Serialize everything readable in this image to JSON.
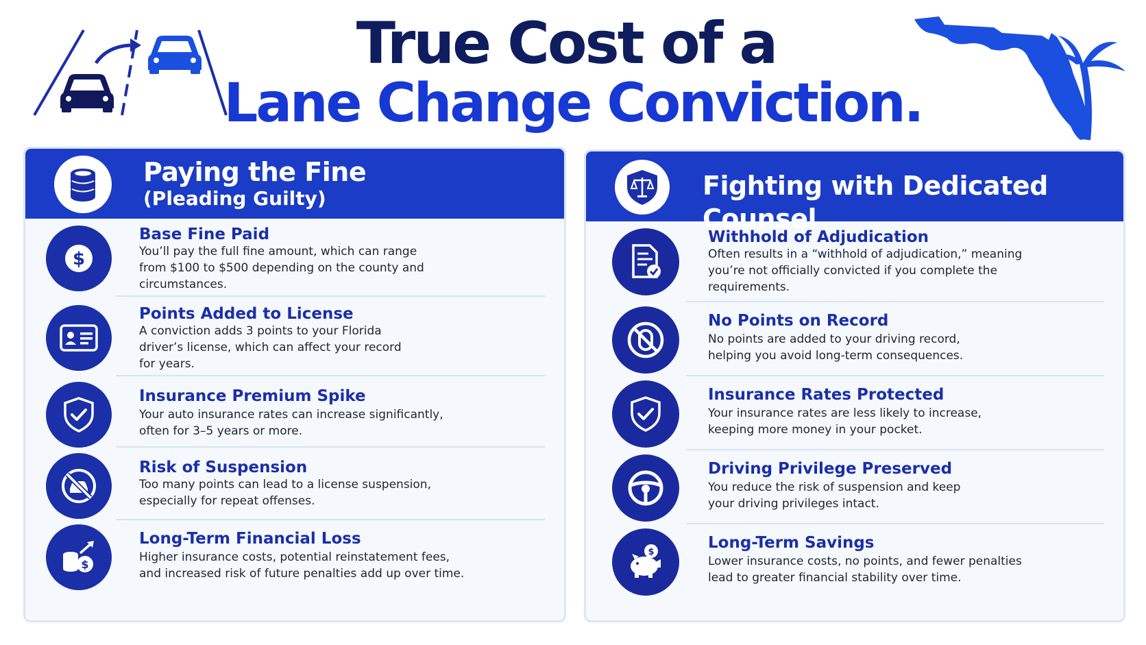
{
  "header": {
    "title_line1": "True Cost of a",
    "title_line2": "Lane Change Conviction.",
    "left_graphic_icon": "lane-change-cars-icon",
    "right_graphic_icon": "florida-palm-tree-icon"
  },
  "colors": {
    "navy": "#0f1d5e",
    "royal_blue": "#1838d4",
    "panel_header": "#1b3cc6",
    "icon_circle": "#1b2fa8",
    "panel_bg": "#f5f9fe",
    "panel_border": "#dbe6f6"
  },
  "left_panel": {
    "title": "Paying the Fine",
    "subtitle": "(Pleading Guilty)",
    "header_icon": "coin-stack-icon",
    "items": [
      {
        "icon": "dollar-icon",
        "title": "Base Fine Paid",
        "lines": [
          "You’ll pay the full fine amount, which can range",
          "from $100 to $500 depending on the county and",
          "circumstances."
        ]
      },
      {
        "icon": "license-card-icon",
        "title": "Points Added to License",
        "lines": [
          "A conviction adds 3 points to your Florida",
          "driver’s license, which can affect your record",
          "for years."
        ]
      },
      {
        "icon": "shield-check-icon",
        "title": "Insurance Premium Spike",
        "lines": [
          "Your auto insurance rates can increase significantly,",
          "often for 3–5 years or more."
        ]
      },
      {
        "icon": "no-car-icon",
        "title": "Risk of Suspension",
        "lines": [
          "Too many points can lead to a license suspension,",
          "especially for repeat offenses."
        ]
      },
      {
        "icon": "coins-up-arrow-icon",
        "title": "Long-Term Financial Loss",
        "lines": [
          "Higher insurance costs, potential reinstatement fees,",
          "and increased risk of future penalties add up over time."
        ]
      }
    ]
  },
  "right_panel": {
    "title": "Fighting with Dedicated Counsel",
    "header_icon": "shield-scales-icon",
    "items": [
      {
        "icon": "document-check-icon",
        "title": "Withhold of Adjudication",
        "lines": [
          "Often results in a “withhold of adjudication,” meaning",
          "you’re not officially convicted if you complete the",
          "requirements."
        ]
      },
      {
        "icon": "no-points-icon",
        "title": "No Points on Record",
        "lines": [
          "No points are added to your driving record,",
          "helping you avoid long-term consequences."
        ]
      },
      {
        "icon": "shield-check-icon",
        "title": "Insurance Rates Protected",
        "lines": [
          "Your insurance rates are less likely to increase,",
          "keeping more money in your pocket."
        ]
      },
      {
        "icon": "steering-wheel-icon",
        "title": "Driving Privilege Preserved",
        "lines": [
          "You reduce the risk of suspension and keep",
          "your driving privileges intact."
        ]
      },
      {
        "icon": "piggy-bank-icon",
        "title": "Long-Term Savings",
        "lines": [
          "Lower insurance costs, no points, and fewer penalties",
          "lead to greater financial stability over time."
        ]
      }
    ]
  }
}
